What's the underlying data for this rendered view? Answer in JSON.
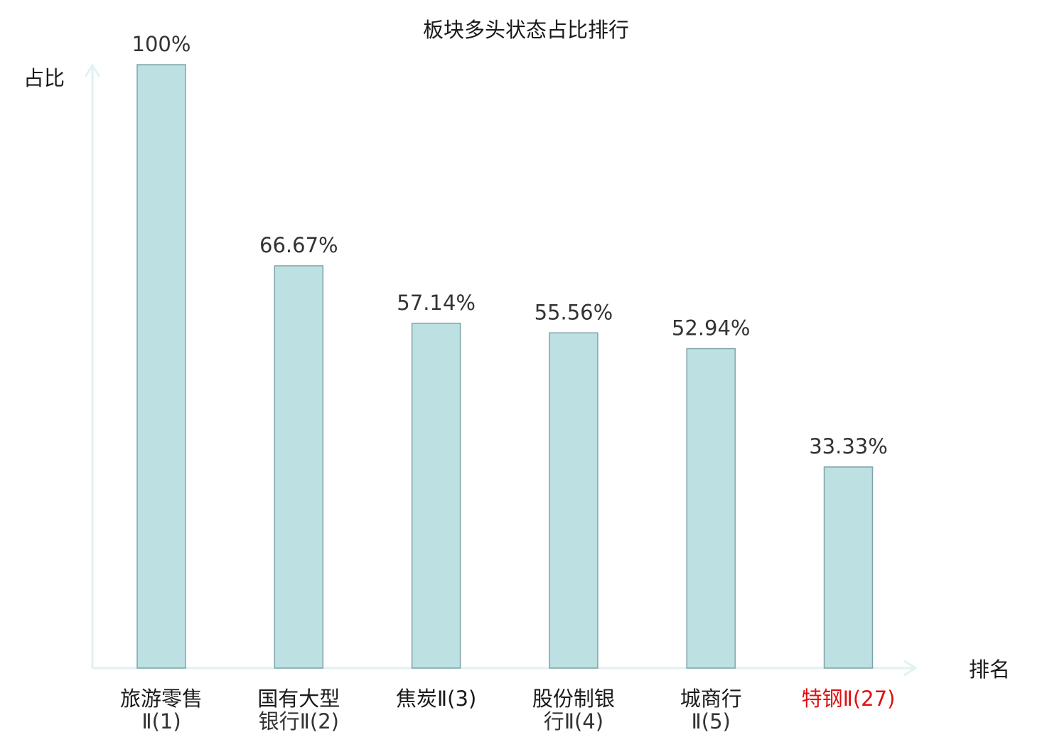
{
  "chart_data": {
    "type": "bar",
    "title": "板块多头状态占比排行",
    "xlabel": "排名",
    "ylabel": "占比",
    "ylim": [
      0,
      100
    ],
    "grid": false,
    "categories": [
      {
        "name": "旅游零售",
        "rank": "Ⅱ(1)",
        "highlight": false
      },
      {
        "name": "国有大型",
        "rank": "银行Ⅱ(2)",
        "highlight": false
      },
      {
        "name": "焦炭",
        "rank": "Ⅱ(3)",
        "highlight": false
      },
      {
        "name": "股份制银",
        "rank": "行Ⅱ(4)",
        "highlight": false
      },
      {
        "name": "城商行",
        "rank": "Ⅱ(5)",
        "highlight": false
      },
      {
        "name": "特钢",
        "rank": "Ⅱ(27)",
        "highlight": true
      }
    ],
    "values": [
      100,
      66.67,
      57.14,
      55.56,
      52.94,
      33.33
    ],
    "value_labels": [
      "100%",
      "66.67%",
      "57.14%",
      "55.56%",
      "52.94%",
      "33.33%"
    ]
  },
  "colors": {
    "bar_fill": "#bde0e3",
    "bar_stroke": "#7fa3a8",
    "axis": "#e0f2f1",
    "text": "#1a1a1a",
    "value_text": "#333333",
    "highlight": "#e01010"
  }
}
